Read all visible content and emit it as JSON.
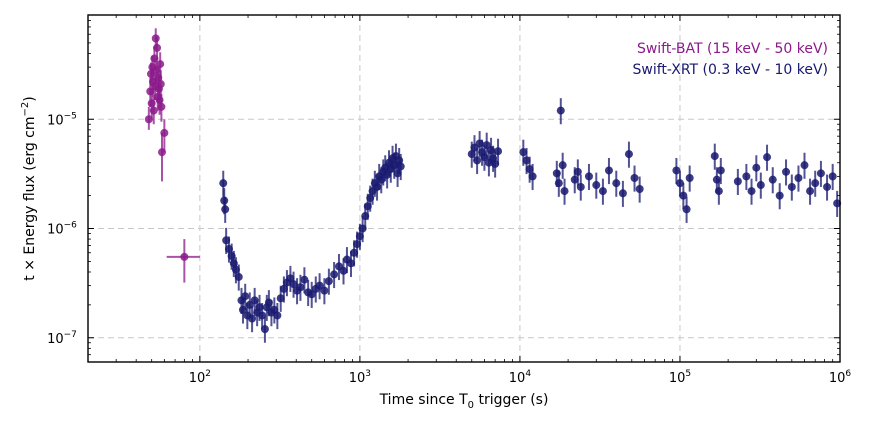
{
  "chart_data": {
    "type": "scatter",
    "title": "",
    "xlabel_main": "Time since T",
    "xlabel_sub": "0",
    "xlabel_tail": " trigger (s)",
    "ylabel_main": "t × Energy flux (erg cm",
    "ylabel_sup": "−2",
    "ylabel_tail": ")",
    "xscale": "log",
    "yscale": "log",
    "xlim": [
      20,
      1000000
    ],
    "ylim": [
      6e-08,
      9e-05
    ],
    "grid": true,
    "legend_position": "top-right",
    "x_ticks": [
      {
        "value": 100,
        "base": "10",
        "exp": "2"
      },
      {
        "value": 1000,
        "base": "10",
        "exp": "3"
      },
      {
        "value": 10000,
        "base": "10",
        "exp": "4"
      },
      {
        "value": 100000,
        "base": "10",
        "exp": "5"
      },
      {
        "value": 1000000,
        "base": "10",
        "exp": "6"
      }
    ],
    "y_ticks": [
      {
        "value": 1e-07,
        "base": "10",
        "exp": "−7"
      },
      {
        "value": 1e-06,
        "base": "10",
        "exp": "−6"
      },
      {
        "value": 1e-05,
        "base": "10",
        "exp": "−5"
      }
    ],
    "series": [
      {
        "name": "Swift-BAT (15 keV - 50 keV)",
        "color": "#8b1a8b",
        "points": [
          {
            "x": 48,
            "y": 1e-05,
            "ylo": 8e-06,
            "yhi": 1.3e-05
          },
          {
            "x": 49,
            "y": 1.8e-05,
            "ylo": 1.3e-05,
            "yhi": 2.4e-05
          },
          {
            "x": 49.5,
            "y": 2.6e-05,
            "ylo": 2e-05,
            "yhi": 3.3e-05
          },
          {
            "x": 50,
            "y": 1.4e-05,
            "ylo": 1e-05,
            "yhi": 1.9e-05
          },
          {
            "x": 50.5,
            "y": 3e-05,
            "ylo": 2.3e-05,
            "yhi": 3.8e-05
          },
          {
            "x": 51,
            "y": 2.2e-05,
            "ylo": 1.6e-05,
            "yhi": 2.9e-05
          },
          {
            "x": 51.5,
            "y": 1.2e-05,
            "ylo": 9e-06,
            "yhi": 1.6e-05
          },
          {
            "x": 52,
            "y": 3.6e-05,
            "ylo": 2.8e-05,
            "yhi": 4.6e-05
          },
          {
            "x": 52.5,
            "y": 2e-05,
            "ylo": 1.5e-05,
            "yhi": 2.6e-05
          },
          {
            "x": 53,
            "y": 5.5e-05,
            "ylo": 4.4e-05,
            "yhi": 6.8e-05
          },
          {
            "x": 53.5,
            "y": 2.8e-05,
            "ylo": 2.1e-05,
            "yhi": 3.6e-05
          },
          {
            "x": 54,
            "y": 4.5e-05,
            "ylo": 3.5e-05,
            "yhi": 5.7e-05
          },
          {
            "x": 54.5,
            "y": 1.6e-05,
            "ylo": 1.2e-05,
            "yhi": 2.1e-05
          },
          {
            "x": 55,
            "y": 2.4e-05,
            "ylo": 1.8e-05,
            "yhi": 3.1e-05
          },
          {
            "x": 55.5,
            "y": 1.9e-05,
            "ylo": 1.4e-05,
            "yhi": 2.5e-05
          },
          {
            "x": 56,
            "y": 1.5e-05,
            "ylo": 1.1e-05,
            "yhi": 2e-05
          },
          {
            "x": 56.5,
            "y": 3.2e-05,
            "ylo": 2.4e-05,
            "yhi": 4.1e-05
          },
          {
            "x": 57,
            "y": 2.1e-05,
            "ylo": 1.6e-05,
            "yhi": 2.8e-05
          },
          {
            "x": 57.5,
            "y": 1.3e-05,
            "ylo": 9.5e-06,
            "yhi": 1.7e-05
          },
          {
            "x": 58,
            "y": 5e-06,
            "ylo": 2.7e-06,
            "yhi": 7.5e-06
          },
          {
            "x": 60,
            "y": 7.5e-06,
            "ylo": 5e-06,
            "yhi": 1e-05
          },
          {
            "x": 80,
            "y": 5.5e-07,
            "ylo": 3.2e-07,
            "yhi": 8e-07,
            "xlo": 62,
            "xhi": 100
          }
        ]
      },
      {
        "name": "Swift-XRT (0.3 keV - 10 keV)",
        "color": "#191970",
        "points": [
          {
            "x": 140,
            "y": 2.6e-06
          },
          {
            "x": 142,
            "y": 1.8e-06
          },
          {
            "x": 144,
            "y": 1.5e-06
          },
          {
            "x": 146,
            "y": 7.8e-07
          },
          {
            "x": 152,
            "y": 6.5e-07
          },
          {
            "x": 158,
            "y": 5.6e-07
          },
          {
            "x": 163,
            "y": 4.8e-07
          },
          {
            "x": 168,
            "y": 4.2e-07
          },
          {
            "x": 175,
            "y": 3.6e-07
          },
          {
            "x": 182,
            "y": 2.2e-07
          },
          {
            "x": 186,
            "y": 1.8e-07
          },
          {
            "x": 192,
            "y": 2.4e-07
          },
          {
            "x": 198,
            "y": 1.6e-07
          },
          {
            "x": 205,
            "y": 2e-07
          },
          {
            "x": 212,
            "y": 1.5e-07
          },
          {
            "x": 220,
            "y": 2.2e-07
          },
          {
            "x": 228,
            "y": 1.7e-07
          },
          {
            "x": 236,
            "y": 1.9e-07
          },
          {
            "x": 245,
            "y": 1.6e-07
          },
          {
            "x": 255,
            "y": 1.2e-07
          },
          {
            "x": 262,
            "y": 1.9e-07
          },
          {
            "x": 270,
            "y": 2.1e-07
          },
          {
            "x": 280,
            "y": 1.7e-07
          },
          {
            "x": 292,
            "y": 1.8e-07
          },
          {
            "x": 305,
            "y": 1.6e-07
          },
          {
            "x": 320,
            "y": 2.3e-07
          },
          {
            "x": 335,
            "y": 2.8e-07
          },
          {
            "x": 350,
            "y": 3.2e-07
          },
          {
            "x": 368,
            "y": 3.5e-07
          },
          {
            "x": 385,
            "y": 3.1e-07
          },
          {
            "x": 405,
            "y": 2.7e-07
          },
          {
            "x": 425,
            "y": 2.9e-07
          },
          {
            "x": 450,
            "y": 3.4e-07
          },
          {
            "x": 475,
            "y": 2.6e-07
          },
          {
            "x": 500,
            "y": 2.5e-07
          },
          {
            "x": 530,
            "y": 2.8e-07
          },
          {
            "x": 560,
            "y": 3e-07
          },
          {
            "x": 600,
            "y": 2.7e-07
          },
          {
            "x": 640,
            "y": 3.3e-07
          },
          {
            "x": 690,
            "y": 3.8e-07
          },
          {
            "x": 740,
            "y": 4.5e-07
          },
          {
            "x": 790,
            "y": 4.1e-07
          },
          {
            "x": 830,
            "y": 5.2e-07
          },
          {
            "x": 880,
            "y": 4.8e-07
          },
          {
            "x": 920,
            "y": 6e-07
          },
          {
            "x": 960,
            "y": 7.2e-07
          },
          {
            "x": 1000,
            "y": 8.5e-07
          },
          {
            "x": 1040,
            "y": 1e-06
          },
          {
            "x": 1080,
            "y": 1.3e-06
          },
          {
            "x": 1120,
            "y": 1.6e-06
          },
          {
            "x": 1160,
            "y": 1.9e-06
          },
          {
            "x": 1200,
            "y": 2.2e-06
          },
          {
            "x": 1240,
            "y": 2.6e-06
          },
          {
            "x": 1280,
            "y": 2.4e-06
          },
          {
            "x": 1320,
            "y": 3e-06
          },
          {
            "x": 1360,
            "y": 2.8e-06
          },
          {
            "x": 1400,
            "y": 3.3e-06
          },
          {
            "x": 1440,
            "y": 3.6e-06
          },
          {
            "x": 1480,
            "y": 3.1e-06
          },
          {
            "x": 1520,
            "y": 4e-06
          },
          {
            "x": 1560,
            "y": 3.5e-06
          },
          {
            "x": 1600,
            "y": 4.4e-06
          },
          {
            "x": 1640,
            "y": 3.8e-06
          },
          {
            "x": 1680,
            "y": 4.6e-06
          },
          {
            "x": 1720,
            "y": 3.2e-06
          },
          {
            "x": 1760,
            "y": 4.2e-06
          },
          {
            "x": 1800,
            "y": 3.7e-06
          },
          {
            "x": 5000,
            "y": 4.8e-06
          },
          {
            "x": 5200,
            "y": 5.5e-06
          },
          {
            "x": 5400,
            "y": 4.2e-06
          },
          {
            "x": 5600,
            "y": 6e-06
          },
          {
            "x": 5800,
            "y": 5e-06
          },
          {
            "x": 6000,
            "y": 4.5e-06
          },
          {
            "x": 6200,
            "y": 5.8e-06
          },
          {
            "x": 6400,
            "y": 4e-06
          },
          {
            "x": 6600,
            "y": 5.2e-06
          },
          {
            "x": 6800,
            "y": 4.4e-06
          },
          {
            "x": 7000,
            "y": 3.9e-06
          },
          {
            "x": 7300,
            "y": 5.1e-06
          },
          {
            "x": 10500,
            "y": 5e-06
          },
          {
            "x": 11000,
            "y": 4.2e-06
          },
          {
            "x": 11500,
            "y": 3.5e-06
          },
          {
            "x": 12000,
            "y": 3e-06
          },
          {
            "x": 17000,
            "y": 3.2e-06
          },
          {
            "x": 17500,
            "y": 2.6e-06
          },
          {
            "x": 18000,
            "y": 1.2e-05
          },
          {
            "x": 18500,
            "y": 3.8e-06
          },
          {
            "x": 19000,
            "y": 2.2e-06
          },
          {
            "x": 22000,
            "y": 2.8e-06
          },
          {
            "x": 23000,
            "y": 3.3e-06
          },
          {
            "x": 24000,
            "y": 2.4e-06
          },
          {
            "x": 27000,
            "y": 3e-06
          },
          {
            "x": 30000,
            "y": 2.5e-06
          },
          {
            "x": 33000,
            "y": 2.2e-06
          },
          {
            "x": 36000,
            "y": 3.4e-06
          },
          {
            "x": 40000,
            "y": 2.6e-06
          },
          {
            "x": 44000,
            "y": 2.1e-06
          },
          {
            "x": 48000,
            "y": 4.8e-06
          },
          {
            "x": 52000,
            "y": 2.9e-06
          },
          {
            "x": 56000,
            "y": 2.3e-06
          },
          {
            "x": 95000,
            "y": 3.4e-06
          },
          {
            "x": 100000,
            "y": 2.6e-06
          },
          {
            "x": 105000,
            "y": 2e-06
          },
          {
            "x": 110000,
            "y": 1.5e-06
          },
          {
            "x": 115000,
            "y": 2.9e-06
          },
          {
            "x": 165000,
            "y": 4.6e-06
          },
          {
            "x": 170000,
            "y": 2.8e-06
          },
          {
            "x": 175000,
            "y": 2.2e-06
          },
          {
            "x": 180000,
            "y": 3.4e-06
          },
          {
            "x": 230000,
            "y": 2.7e-06
          },
          {
            "x": 260000,
            "y": 3e-06
          },
          {
            "x": 280000,
            "y": 2.2e-06
          },
          {
            "x": 300000,
            "y": 3.6e-06
          },
          {
            "x": 320000,
            "y": 2.5e-06
          },
          {
            "x": 350000,
            "y": 4.5e-06
          },
          {
            "x": 380000,
            "y": 2.8e-06
          },
          {
            "x": 420000,
            "y": 2e-06
          },
          {
            "x": 460000,
            "y": 3.3e-06
          },
          {
            "x": 500000,
            "y": 2.4e-06
          },
          {
            "x": 550000,
            "y": 2.9e-06
          },
          {
            "x": 600000,
            "y": 3.8e-06
          },
          {
            "x": 650000,
            "y": 2.2e-06
          },
          {
            "x": 700000,
            "y": 2.6e-06
          },
          {
            "x": 760000,
            "y": 3.2e-06
          },
          {
            "x": 830000,
            "y": 2.4e-06
          },
          {
            "x": 900000,
            "y": 3e-06
          },
          {
            "x": 960000,
            "y": 1.7e-06
          }
        ]
      }
    ]
  }
}
